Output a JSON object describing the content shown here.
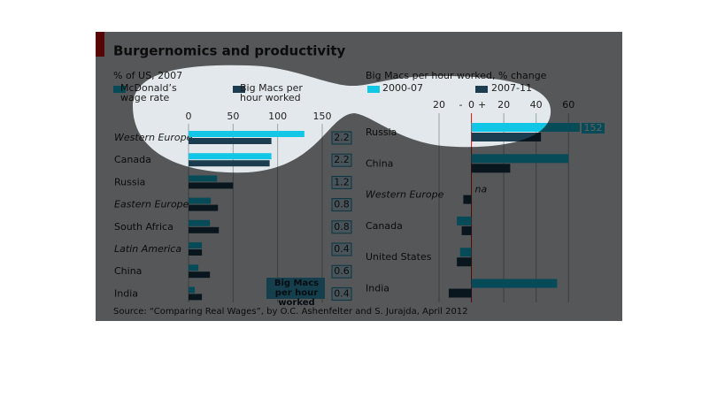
{
  "header": {
    "title": "Burgernomics and productivity",
    "source": "Source: “Comparing Real Wages”, by O.C. Ashenfelter and S. Jurajda, April 2012"
  },
  "chart_data": [
    {
      "type": "bar",
      "orientation": "horizontal",
      "subtitle": "% of US, 2007",
      "categories": [
        "Western Europe",
        "Canada",
        "Russia",
        "Eastern Europe",
        "South Africa",
        "Latin America",
        "China",
        "India"
      ],
      "italic": [
        true,
        false,
        false,
        true,
        false,
        true,
        false,
        false
      ],
      "series": [
        {
          "name": "McDonald’s wage rate",
          "color": "#12c6e6",
          "values": [
            130,
            93,
            32,
            25,
            24,
            15,
            11,
            7
          ]
        },
        {
          "name": "Big Macs per hour worked",
          "color": "#1c3c50",
          "values": [
            93,
            91,
            50,
            33,
            34,
            15,
            24,
            15
          ]
        }
      ],
      "xlim": [
        0,
        150
      ],
      "xticks": [
        0,
        50,
        100,
        150
      ],
      "grid": true,
      "annotation": "Big Macs per hour worked",
      "side_values": [
        2.2,
        2.2,
        1.2,
        0.8,
        0.8,
        0.4,
        0.6,
        0.4
      ]
    },
    {
      "type": "bar",
      "orientation": "horizontal",
      "title": "Big Macs per hour worked, % change",
      "categories": [
        "Russia",
        "China",
        "Western Europe",
        "Canada",
        "United States",
        "India"
      ],
      "italic": [
        false,
        false,
        true,
        false,
        false,
        false
      ],
      "series": [
        {
          "name": "2000-07",
          "color": "#12c6e6",
          "values": [
            152,
            60,
            null,
            -9,
            -7,
            53
          ],
          "value_labels": [
            "152",
            null,
            "na",
            null,
            null,
            null
          ]
        },
        {
          "name": "2007-11",
          "color": "#1c3c50",
          "values": [
            43,
            24,
            -5,
            -6,
            -9,
            -14
          ]
        }
      ],
      "xlim": [
        -20,
        67
      ],
      "xticks": [
        {
          "value": -20,
          "label": "20"
        },
        0,
        20,
        40,
        60
      ],
      "sign_labels": [
        "-",
        "+"
      ],
      "grid": true
    }
  ]
}
